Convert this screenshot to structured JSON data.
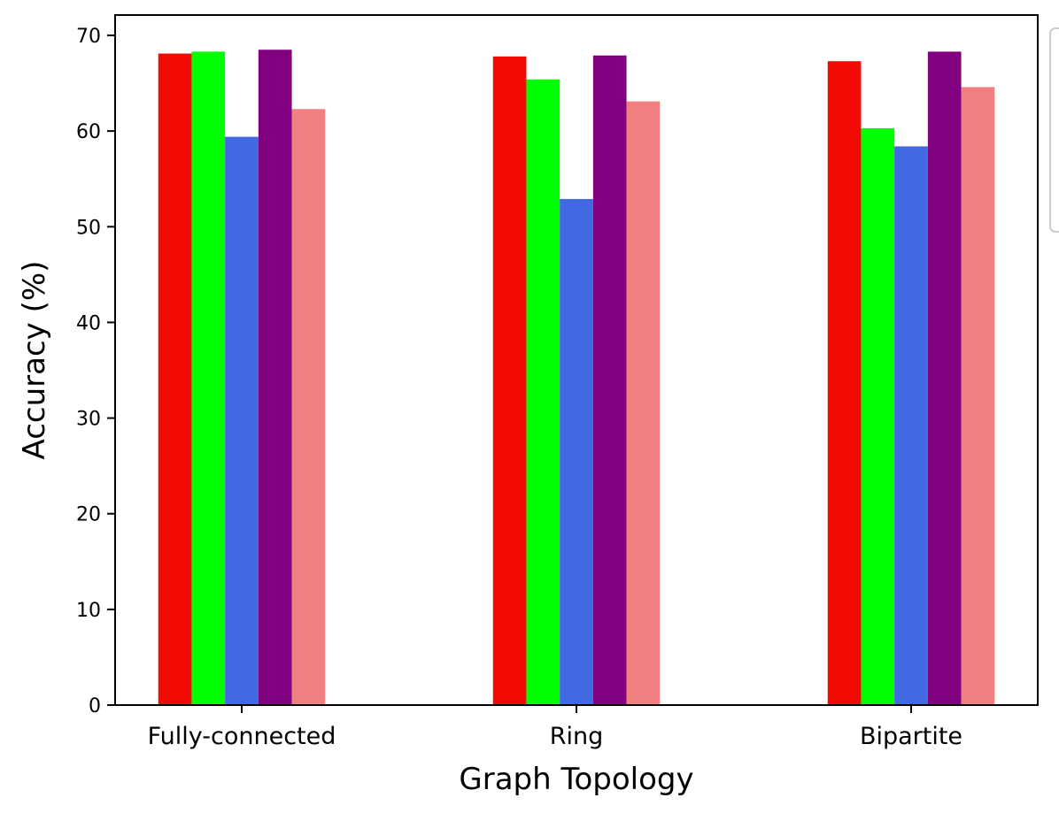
{
  "chart_data": {
    "type": "bar",
    "categories": [
      "Fully-connected",
      "Ring",
      "Bipartite"
    ],
    "series": [
      {
        "color": "#f20a05",
        "values": [
          68.1,
          67.8,
          67.3
        ]
      },
      {
        "color": "#00ff00",
        "values": [
          68.3,
          65.4,
          60.3
        ]
      },
      {
        "color": "#4169e1",
        "values": [
          59.4,
          52.9,
          58.4
        ]
      },
      {
        "color": "#800080",
        "values": [
          68.5,
          67.9,
          68.3
        ]
      },
      {
        "color": "#f08080",
        "values": [
          62.3,
          63.1,
          64.6
        ]
      }
    ],
    "xlabel": "Graph Topology",
    "ylabel": "Accuracy (%)",
    "ylim": [
      0,
      70
    ],
    "yticks": [
      0,
      10,
      20,
      30,
      40,
      50,
      60,
      70
    ],
    "grid": false,
    "legend": {
      "placement": "outside upper right (partially cropped)",
      "entries": []
    }
  }
}
